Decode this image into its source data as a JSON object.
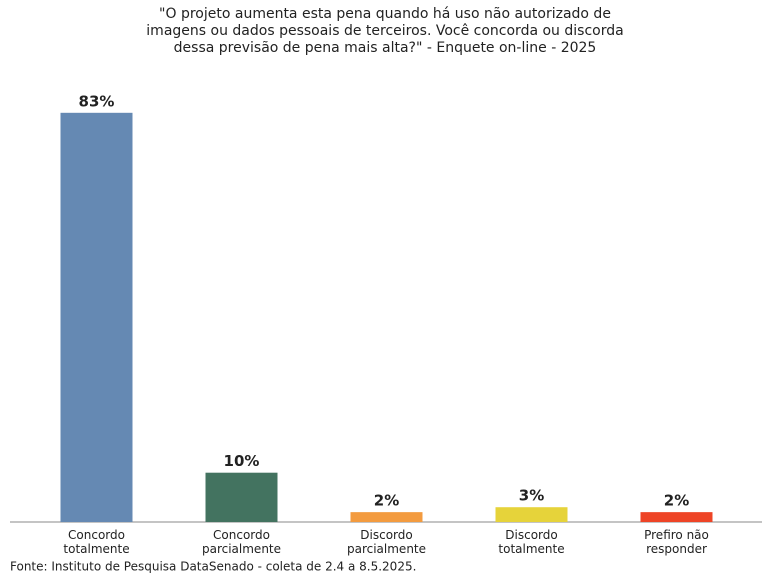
{
  "chart_data": {
    "type": "bar",
    "title": [
      "\"O projeto aumenta esta pena quando há uso não autorizado de",
      "imagens ou dados pessoais de terceiros. Você concorda ou discorda",
      "dessa previsão de pena mais alta?\" - Enquete on-line - 2025"
    ],
    "categories": [
      "Concordo totalmente",
      "Concordo parcialmente",
      "Discordo parcialmente",
      "Discordo totalmente",
      "Prefiro não responder"
    ],
    "values": [
      83,
      10,
      2,
      3,
      2
    ],
    "value_labels": [
      "83%",
      "10%",
      "2%",
      "3%",
      "2%"
    ],
    "colors": [
      "#6589b3",
      "#437360",
      "#f39b3f",
      "#e6d33a",
      "#ee4426"
    ],
    "ylim": [
      0,
      100
    ],
    "source": "Fonte: Instituto de Pesquisa DataSenado - coleta de 2.4 a 8.5.2025."
  }
}
